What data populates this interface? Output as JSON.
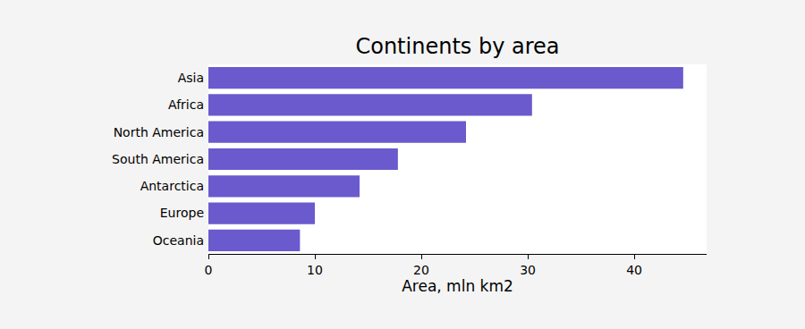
{
  "chart_data": {
    "type": "bar",
    "orientation": "horizontal",
    "title": "Continents by area",
    "x_label": "Area, mln km2",
    "categories": [
      "Asia",
      "Africa",
      "North America",
      "South America",
      "Antarctica",
      "Europe",
      "Oceania"
    ],
    "values": [
      44.6,
      30.4,
      24.2,
      17.8,
      14.2,
      10.0,
      8.6
    ],
    "color": "#6a5acd",
    "xlim": [
      0,
      46.8
    ],
    "xticks": [
      0,
      10,
      20,
      30,
      40
    ],
    "grid": false
  }
}
